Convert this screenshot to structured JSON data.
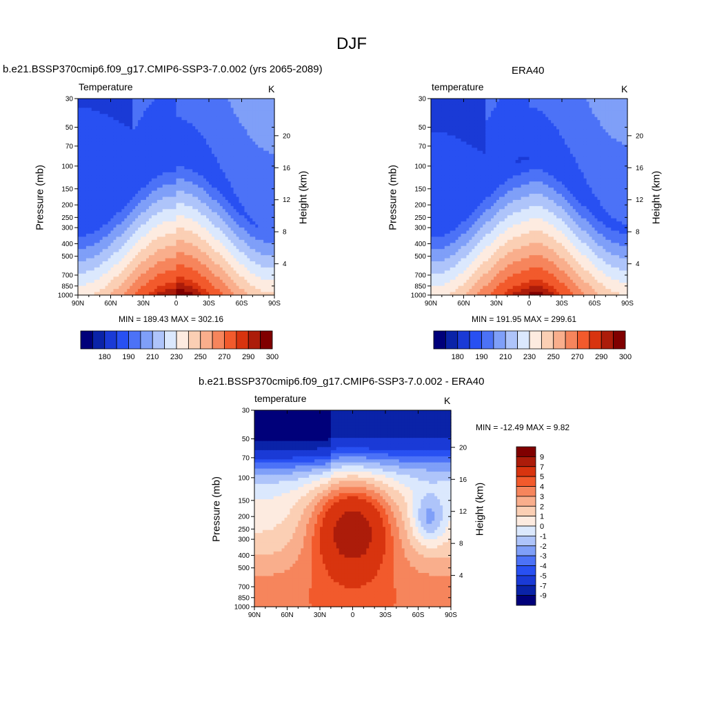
{
  "page": {
    "title": "DJF"
  },
  "colors": {
    "panel_palette": [
      "#00007a",
      "#0a23a8",
      "#1a3ad6",
      "#2850f2",
      "#4c72f7",
      "#7f9ff8",
      "#aec4fa",
      "#dbe8fd",
      "#fdebe0",
      "#fbcfb4",
      "#f9ae8c",
      "#f6855c",
      "#f25a2c",
      "#d8340f",
      "#ac1c0a",
      "#800000"
    ],
    "diff_palette": [
      "#00007a",
      "#0a23a8",
      "#1a3ad6",
      "#2850f2",
      "#4c72f7",
      "#7f9ff8",
      "#aec4fa",
      "#dbe8fd",
      "#fdebe0",
      "#fbcfb4",
      "#f9ae8c",
      "#f6855c",
      "#f25a2c",
      "#d8340f",
      "#ac1c0a",
      "#800000"
    ]
  },
  "chart_data": [
    {
      "type": "heatmap",
      "title": "b.e21.BSSP370cmip6.f09_g17.CMIP6-SSP3-7.0.002 (yrs 2065-2089)",
      "variable": "Temperature",
      "units": "K",
      "ylabel": "Pressure (mb)",
      "y2label": "Height (km)",
      "pressure_ticks": [
        "30",
        "50",
        "70",
        "100",
        "150",
        "200",
        "250",
        "300",
        "400",
        "500",
        "700",
        "850",
        "1000"
      ],
      "height_ticks": [
        "20",
        "16",
        "12",
        "8",
        "4"
      ],
      "x_ticks": [
        "90N",
        "60N",
        "30N",
        "0",
        "30S",
        "60S",
        "90S"
      ],
      "min": 189.43,
      "max": 302.16,
      "minmax_text": "MIN = 189.43  MAX = 302.16",
      "colorbar_labels": [
        "180",
        "190",
        "210",
        "230",
        "250",
        "270",
        "290",
        "300"
      ],
      "warm_core_shift": 0
    },
    {
      "type": "heatmap",
      "title": "ERA40",
      "variable": "temperature",
      "units": "K",
      "ylabel": "Pressure (mb)",
      "y2label": "Height (km)",
      "pressure_ticks": [
        "30",
        "50",
        "70",
        "100",
        "150",
        "200",
        "250",
        "300",
        "400",
        "500",
        "700",
        "850",
        "1000"
      ],
      "height_ticks": [
        "20",
        "16",
        "12",
        "8",
        "4"
      ],
      "x_ticks": [
        "90N",
        "60N",
        "30N",
        "0",
        "30S",
        "60S",
        "90S"
      ],
      "min": 191.95,
      "max": 299.61,
      "minmax_text": "MIN = 191.95  MAX = 299.61",
      "colorbar_labels": [
        "180",
        "190",
        "210",
        "230",
        "250",
        "270",
        "290",
        "300"
      ],
      "warm_core_shift": 0
    },
    {
      "type": "heatmap",
      "title": "b.e21.BSSP370cmip6.f09_g17.CMIP6-SSP3-7.0.002 - ERA40",
      "variable": "temperature",
      "units": "K",
      "ylabel": "Pressure (mb)",
      "y2label": "Height (km)",
      "pressure_ticks": [
        "30",
        "50",
        "70",
        "100",
        "150",
        "200",
        "250",
        "300",
        "400",
        "500",
        "700",
        "850",
        "1000"
      ],
      "height_ticks": [
        "20",
        "16",
        "12",
        "8",
        "4"
      ],
      "x_ticks": [
        "90N",
        "60N",
        "30N",
        "0",
        "30S",
        "60S",
        "90S"
      ],
      "min": -12.49,
      "max": 9.82,
      "minmax_text": "MIN = -12.49  MAX =   9.82",
      "colorbar_labels": [
        "9",
        "7",
        "5",
        "4",
        "3",
        "2",
        "1",
        "0",
        "-1",
        "-2",
        "-3",
        "-4",
        "-5",
        "-7",
        "-9"
      ]
    }
  ]
}
